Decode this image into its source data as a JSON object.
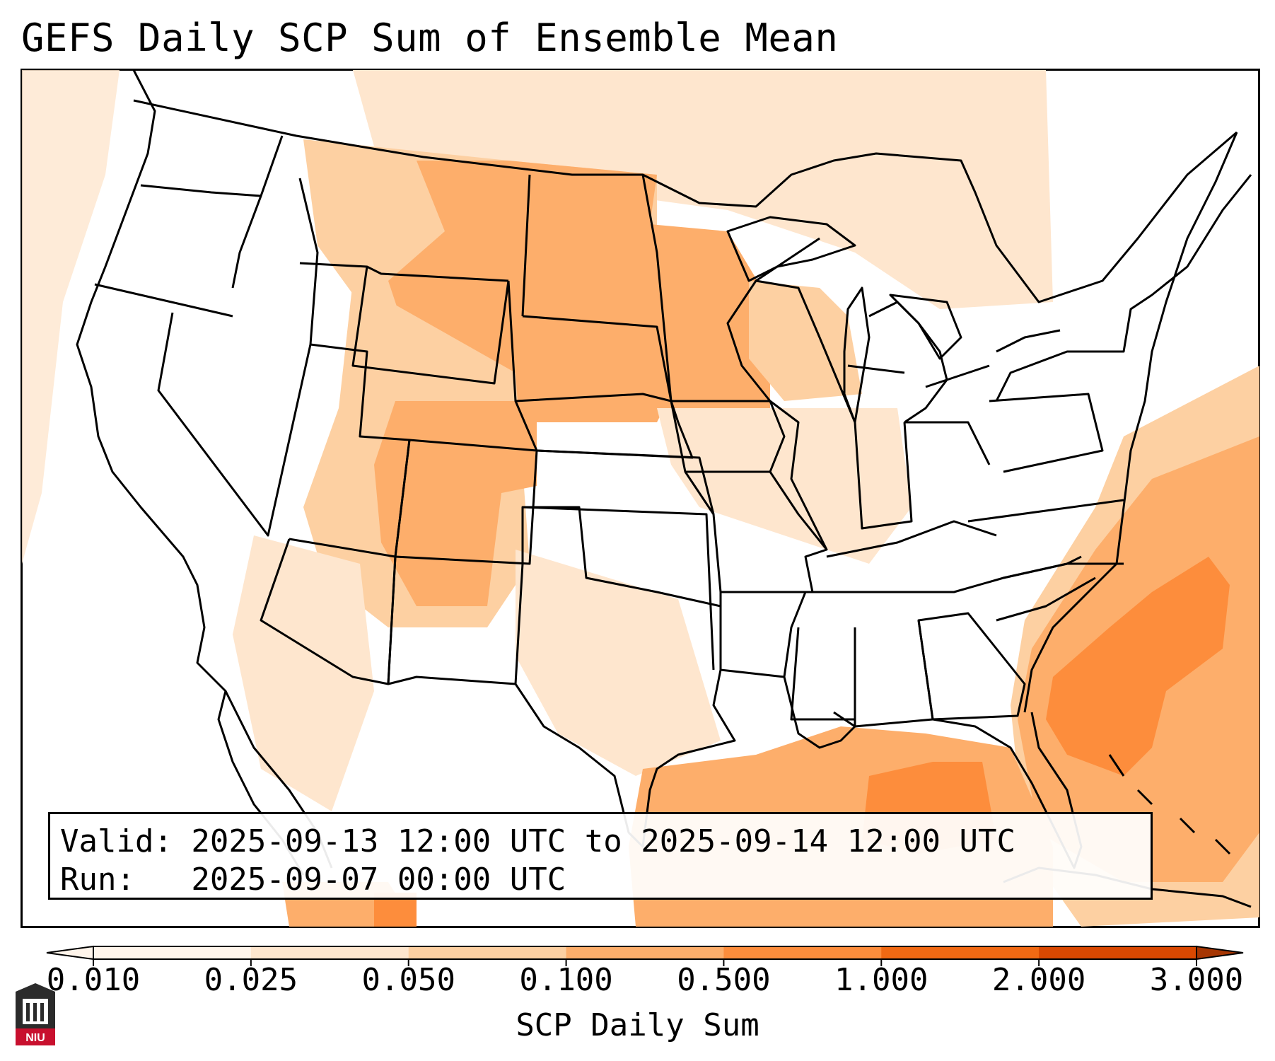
{
  "title": "GEFS Daily SCP Sum of Ensemble Mean",
  "info": {
    "valid": "Valid: 2025-09-13 12:00 UTC to 2025-09-14 12:00 UTC",
    "run": "Run:   2025-09-07 00:00 UTC"
  },
  "colorbar": {
    "label": "SCP Daily Sum",
    "ticks": [
      "0.010",
      "0.025",
      "0.050",
      "0.100",
      "0.500",
      "1.000",
      "2.000",
      "3.000"
    ],
    "colors": [
      "#fff5eb",
      "#fee6ce",
      "#fdd0a2",
      "#fdae6b",
      "#fd8d3c",
      "#f16913",
      "#d94801",
      "#a63603"
    ],
    "extend": "both"
  },
  "map": {
    "projection": "Lambert Conformal (CONUS)",
    "field": "SCP daily sum, ensemble mean",
    "colormap": "Oranges"
  },
  "logo": {
    "text": "NIU",
    "icon": "niu-logo-icon",
    "color": "#c8102e"
  }
}
